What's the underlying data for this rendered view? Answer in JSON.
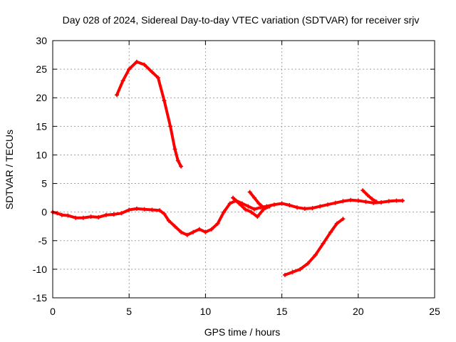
{
  "chart_data": {
    "type": "scatter",
    "title": "Day 028 of 2024, Sidereal Day-to-day VTEC variation (SDTVAR) for receiver srjv",
    "xlabel": "GPS time / hours",
    "ylabel": "SDTVAR / TECUs",
    "xlim": [
      0,
      25
    ],
    "ylim": [
      -15,
      30
    ],
    "xticks": [
      0,
      5,
      10,
      15,
      20,
      25
    ],
    "yticks": [
      -15,
      -10,
      -5,
      0,
      5,
      10,
      15,
      20,
      25,
      30
    ],
    "grid": true,
    "marker": "+",
    "color": "#ff0000",
    "series": [
      {
        "name": "main-band",
        "x": [
          0.0,
          0.3,
          0.6,
          1.0,
          1.5,
          2.0,
          2.5,
          3.0,
          3.5,
          4.0,
          4.5,
          5.0,
          5.5,
          6.0,
          6.5,
          7.0,
          7.3,
          7.6,
          8.0,
          8.4,
          8.8,
          9.2,
          9.6,
          10.0,
          10.4,
          10.8,
          11.2,
          11.6,
          12.0,
          12.4,
          12.8,
          13.2,
          13.6,
          14.0,
          14.5,
          15.0,
          15.5,
          16.0,
          16.5,
          17.0,
          17.5,
          18.0,
          18.5,
          19.0,
          19.5,
          20.0,
          20.5,
          21.0,
          21.5,
          22.0,
          22.5,
          22.9
        ],
        "y": [
          0.0,
          -0.2,
          -0.5,
          -0.6,
          -1.0,
          -1.0,
          -0.8,
          -0.9,
          -0.5,
          -0.4,
          -0.2,
          0.4,
          0.6,
          0.5,
          0.4,
          0.3,
          -0.3,
          -1.5,
          -2.5,
          -3.5,
          -4.0,
          -3.5,
          -3.0,
          -3.5,
          -3.0,
          -2.0,
          0.0,
          1.5,
          2.0,
          1.5,
          1.0,
          0.5,
          0.8,
          1.0,
          1.3,
          1.5,
          1.2,
          0.8,
          0.6,
          0.7,
          1.0,
          1.3,
          1.6,
          1.9,
          2.1,
          2.0,
          1.8,
          1.6,
          1.7,
          1.9,
          2.0,
          2.0
        ]
      },
      {
        "name": "secondary-band",
        "x": [
          11.8,
          12.2,
          12.6,
          13.0,
          13.4,
          13.8,
          14.2
        ],
        "y": [
          2.5,
          1.5,
          0.5,
          0.0,
          -0.8,
          0.5,
          1.0
        ]
      },
      {
        "name": "branch-12h",
        "x": [
          12.9,
          13.2,
          13.5,
          13.8
        ],
        "y": [
          3.5,
          2.5,
          1.5,
          0.8
        ]
      },
      {
        "name": "arc-morning",
        "x": [
          4.2,
          4.6,
          5.0,
          5.5,
          6.0,
          6.5,
          6.9,
          7.3,
          7.7,
          8.0,
          8.2,
          8.4
        ],
        "y": [
          20.5,
          23.0,
          25.0,
          26.3,
          25.8,
          24.5,
          23.5,
          19.5,
          15.0,
          11.0,
          9.0,
          8.0
        ]
      },
      {
        "name": "arc-evening",
        "x": [
          15.2,
          15.7,
          16.2,
          16.7,
          17.2,
          17.7,
          18.2,
          18.6,
          19.0
        ],
        "y": [
          -11.0,
          -10.5,
          -10.0,
          -9.0,
          -7.5,
          -5.5,
          -3.5,
          -2.0,
          -1.2
        ]
      },
      {
        "name": "branch-20h",
        "x": [
          20.3,
          20.6,
          20.9,
          21.2
        ],
        "y": [
          3.8,
          3.0,
          2.3,
          1.8
        ]
      }
    ]
  }
}
